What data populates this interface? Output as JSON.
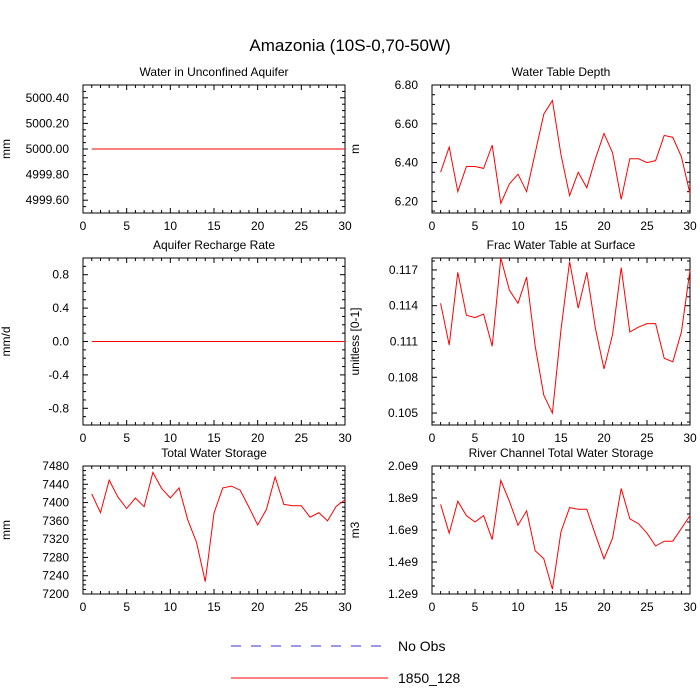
{
  "title": "Amazonia (10S-0,70-50W)",
  "colors": {
    "model": "#ff0000",
    "obs": "#3333cc"
  },
  "legend": {
    "items": [
      {
        "label": "No Obs",
        "style": "dashed",
        "color": "#3333cc"
      },
      {
        "label": "1850_128",
        "style": "solid",
        "color": "#ff0000"
      }
    ]
  },
  "chart_data": [
    {
      "type": "line",
      "title": "Water in Unconfined Aquifer",
      "ylabel": "mm",
      "xlim": [
        0,
        30
      ],
      "ylim": [
        4999.5,
        5000.5
      ],
      "xticks": [
        0,
        5,
        10,
        15,
        20,
        25,
        30
      ],
      "yticks": [
        4999.6,
        4999.8,
        5000.0,
        5000.2,
        5000.4
      ],
      "ytick_labels": [
        "4999.60",
        "4999.80",
        "5000.00",
        "5000.20",
        "5000.40"
      ],
      "x": [
        1,
        2,
        3,
        4,
        5,
        6,
        7,
        8,
        9,
        10,
        11,
        12,
        13,
        14,
        15,
        16,
        17,
        18,
        19,
        20,
        21,
        22,
        23,
        24,
        25,
        26,
        27,
        28,
        29,
        30
      ],
      "series": [
        {
          "name": "1850_128",
          "values": [
            5000,
            5000,
            5000,
            5000,
            5000,
            5000,
            5000,
            5000,
            5000,
            5000,
            5000,
            5000,
            5000,
            5000,
            5000,
            5000,
            5000,
            5000,
            5000,
            5000,
            5000,
            5000,
            5000,
            5000,
            5000,
            5000,
            5000,
            5000,
            5000,
            5000
          ]
        }
      ]
    },
    {
      "type": "line",
      "title": "Water Table Depth",
      "ylabel": "m",
      "xlim": [
        0,
        30
      ],
      "ylim": [
        6.14,
        6.8
      ],
      "xticks": [
        0,
        5,
        10,
        15,
        20,
        25,
        30
      ],
      "yticks": [
        6.2,
        6.4,
        6.6,
        6.8
      ],
      "ytick_labels": [
        "6.20",
        "6.40",
        "6.60",
        "6.80"
      ],
      "x": [
        1,
        2,
        3,
        4,
        5,
        6,
        7,
        8,
        9,
        10,
        11,
        12,
        13,
        14,
        15,
        16,
        17,
        18,
        19,
        20,
        21,
        22,
        23,
        24,
        25,
        26,
        27,
        28,
        29,
        30
      ],
      "series": [
        {
          "name": "1850_128",
          "values": [
            6.35,
            6.48,
            6.25,
            6.38,
            6.38,
            6.37,
            6.49,
            6.19,
            6.29,
            6.34,
            6.25,
            6.45,
            6.65,
            6.72,
            6.44,
            6.23,
            6.35,
            6.27,
            6.42,
            6.55,
            6.45,
            6.21,
            6.42,
            6.42,
            6.4,
            6.41,
            6.54,
            6.53,
            6.43,
            6.24
          ]
        }
      ]
    },
    {
      "type": "line",
      "title": "Aquifer Recharge Rate",
      "ylabel": "mm/d",
      "xlim": [
        0,
        30
      ],
      "ylim": [
        -1,
        1
      ],
      "xticks": [
        0,
        5,
        10,
        15,
        20,
        25,
        30
      ],
      "yticks": [
        -0.8,
        -0.4,
        0,
        0.4,
        0.8
      ],
      "ytick_labels": [
        "-0.8",
        "-0.4",
        "0.0",
        "0.4",
        "0.8"
      ],
      "x": [
        1,
        2,
        3,
        4,
        5,
        6,
        7,
        8,
        9,
        10,
        11,
        12,
        13,
        14,
        15,
        16,
        17,
        18,
        19,
        20,
        21,
        22,
        23,
        24,
        25,
        26,
        27,
        28,
        29,
        30
      ],
      "series": [
        {
          "name": "1850_128",
          "values": [
            0,
            0,
            0,
            0,
            0,
            0,
            0,
            0,
            0,
            0,
            0,
            0,
            0,
            0,
            0,
            0,
            0,
            0,
            0,
            0,
            0,
            0,
            0,
            0,
            0,
            0,
            0,
            0,
            0,
            0
          ]
        }
      ]
    },
    {
      "type": "line",
      "title": "Frac Water Table at Surface",
      "ylabel": "unitless [0-1]",
      "xlim": [
        0,
        30
      ],
      "ylim": [
        0.104,
        0.118
      ],
      "xticks": [
        0,
        5,
        10,
        15,
        20,
        25,
        30
      ],
      "yticks": [
        0.105,
        0.108,
        0.111,
        0.114,
        0.117
      ],
      "ytick_labels": [
        "0.105",
        "0.108",
        "0.111",
        "0.114",
        "0.117"
      ],
      "x": [
        1,
        2,
        3,
        4,
        5,
        6,
        7,
        8,
        9,
        10,
        11,
        12,
        13,
        14,
        15,
        16,
        17,
        18,
        19,
        20,
        21,
        22,
        23,
        24,
        25,
        26,
        27,
        28,
        29,
        30
      ],
      "series": [
        {
          "name": "1850_128",
          "values": [
            0.1142,
            0.1107,
            0.1168,
            0.1132,
            0.113,
            0.1133,
            0.1106,
            0.118,
            0.1153,
            0.1142,
            0.1164,
            0.1106,
            0.1065,
            0.105,
            0.112,
            0.1177,
            0.1138,
            0.1168,
            0.1121,
            0.1087,
            0.1116,
            0.1172,
            0.1118,
            0.1122,
            0.1125,
            0.1125,
            0.1096,
            0.1093,
            0.1118,
            0.117
          ]
        }
      ]
    },
    {
      "type": "line",
      "title": "Total Water Storage",
      "ylabel": "mm",
      "xlim": [
        0,
        30
      ],
      "ylim": [
        7200,
        7480
      ],
      "xticks": [
        0,
        5,
        10,
        15,
        20,
        25,
        30
      ],
      "yticks": [
        7200,
        7240,
        7280,
        7320,
        7360,
        7400,
        7440,
        7480
      ],
      "ytick_labels": [
        "7200",
        "7240",
        "7280",
        "7320",
        "7360",
        "7400",
        "7440",
        "7480"
      ],
      "x": [
        1,
        2,
        3,
        4,
        5,
        6,
        7,
        8,
        9,
        10,
        11,
        12,
        13,
        14,
        15,
        16,
        17,
        18,
        19,
        20,
        21,
        22,
        23,
        24,
        25,
        26,
        27,
        28,
        29,
        30
      ],
      "series": [
        {
          "name": "1850_128",
          "values": [
            7419,
            7378,
            7449,
            7412,
            7387,
            7410,
            7391,
            7466,
            7431,
            7410,
            7432,
            7362,
            7313,
            7227,
            7377,
            7432,
            7436,
            7427,
            7390,
            7351,
            7385,
            7456,
            7396,
            7393,
            7393,
            7368,
            7378,
            7360,
            7392,
            7406
          ]
        }
      ]
    },
    {
      "type": "line",
      "title": "River Channel Total Water Storage",
      "ylabel": "m3",
      "xlim": [
        0,
        30
      ],
      "ylim": [
        1200000000,
        2000000000
      ],
      "xticks": [
        0,
        5,
        10,
        15,
        20,
        25,
        30
      ],
      "yticks": [
        1200000000,
        1400000000,
        1600000000,
        1800000000,
        2000000000
      ],
      "ytick_labels": [
        "1.2e9",
        "1.4e9",
        "1.6e9",
        "1.8e9",
        "2.0e9"
      ],
      "x": [
        1,
        2,
        3,
        4,
        5,
        6,
        7,
        8,
        9,
        10,
        11,
        12,
        13,
        14,
        15,
        16,
        17,
        18,
        19,
        20,
        21,
        22,
        23,
        24,
        25,
        26,
        27,
        28,
        29,
        30
      ],
      "series": [
        {
          "name": "1850_128",
          "values": [
            1760000000,
            1580000000,
            1780000000,
            1690000000,
            1650000000,
            1690000000,
            1540000000,
            1910000000,
            1780000000,
            1630000000,
            1720000000,
            1470000000,
            1420000000,
            1230000000,
            1590000000,
            1740000000,
            1730000000,
            1730000000,
            1570000000,
            1420000000,
            1550000000,
            1860000000,
            1670000000,
            1640000000,
            1580000000,
            1500000000,
            1530000000,
            1530000000,
            1610000000,
            1690000000
          ]
        }
      ]
    }
  ]
}
